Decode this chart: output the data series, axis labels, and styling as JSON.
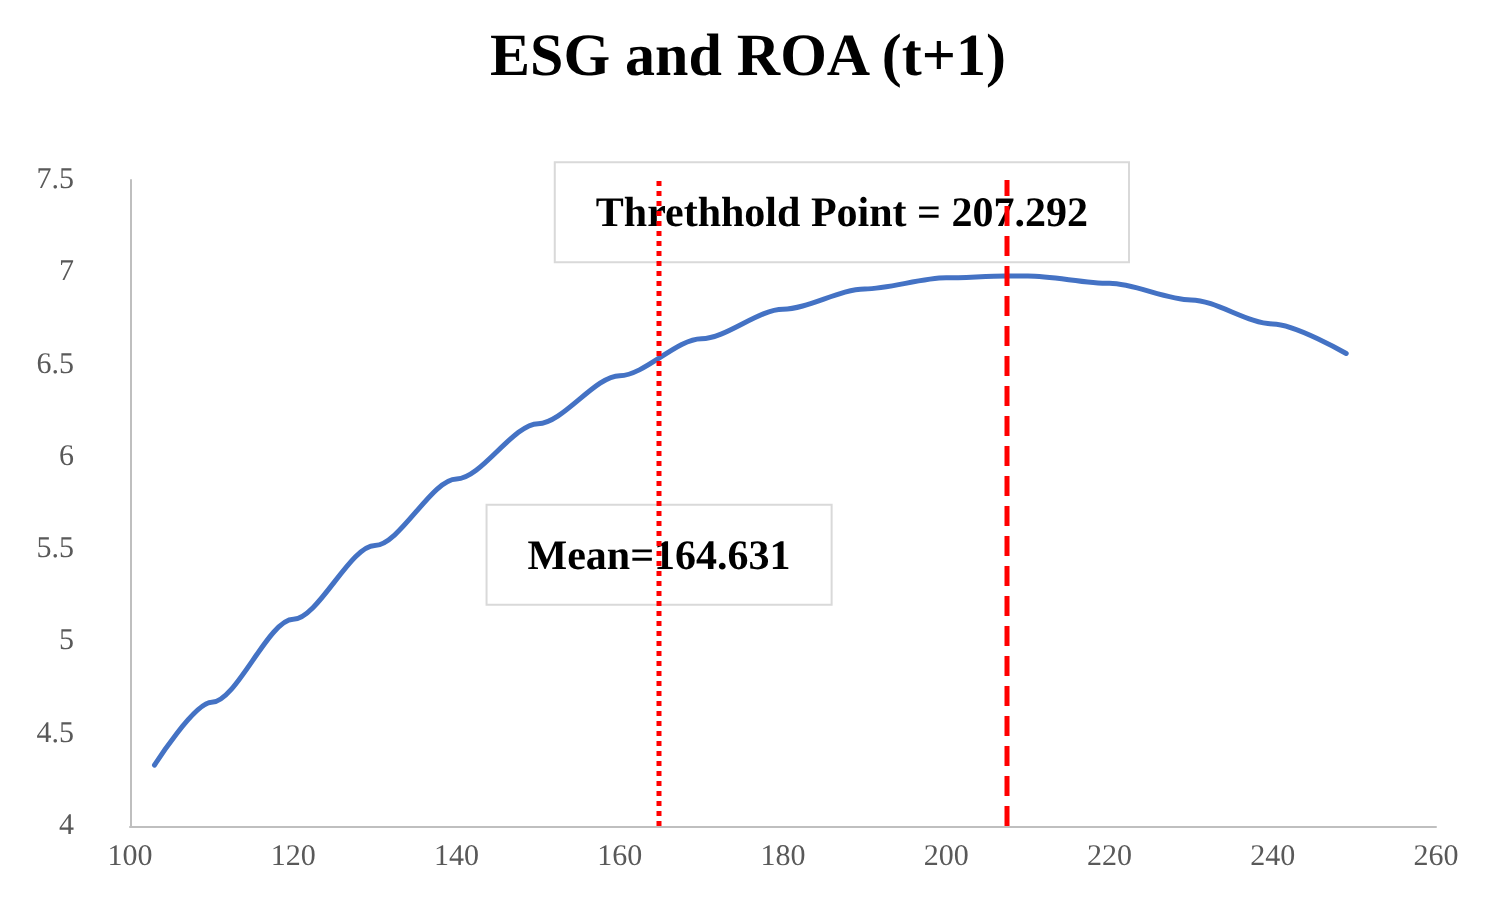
{
  "chart_data": {
    "type": "line",
    "title": "ESG and ROA (t+1)",
    "x": [
      103,
      110,
      120,
      130,
      140,
      150,
      160,
      170,
      180,
      190,
      200,
      207.3,
      210,
      220,
      230,
      240,
      249
    ],
    "series": [
      {
        "color": "#4472c4",
        "values": [
          4.33,
          4.67,
          5.12,
          5.52,
          5.88,
          6.18,
          6.44,
          6.64,
          6.8,
          6.91,
          6.97,
          6.98,
          6.98,
          6.94,
          6.85,
          6.72,
          6.56
        ]
      }
    ],
    "xlim": [
      100,
      260
    ],
    "xticks": [
      100,
      120,
      140,
      160,
      180,
      200,
      220,
      240,
      260
    ],
    "ylim": [
      4,
      7.5
    ],
    "yticks": [
      4,
      4.5,
      5,
      5.5,
      6,
      6.5,
      7,
      7.5
    ],
    "grid": false,
    "marker": "none",
    "line_style": "solid",
    "ref_lines": [
      {
        "axis": "x",
        "value": 164.631,
        "label": "Mean=164.631",
        "color": "#ff0000",
        "line_style": "dotted"
      },
      {
        "axis": "x",
        "value": 207.292,
        "label": "Threthhold Point = 207.292",
        "color": "#ff0000",
        "line_style": "dashed"
      }
    ]
  }
}
